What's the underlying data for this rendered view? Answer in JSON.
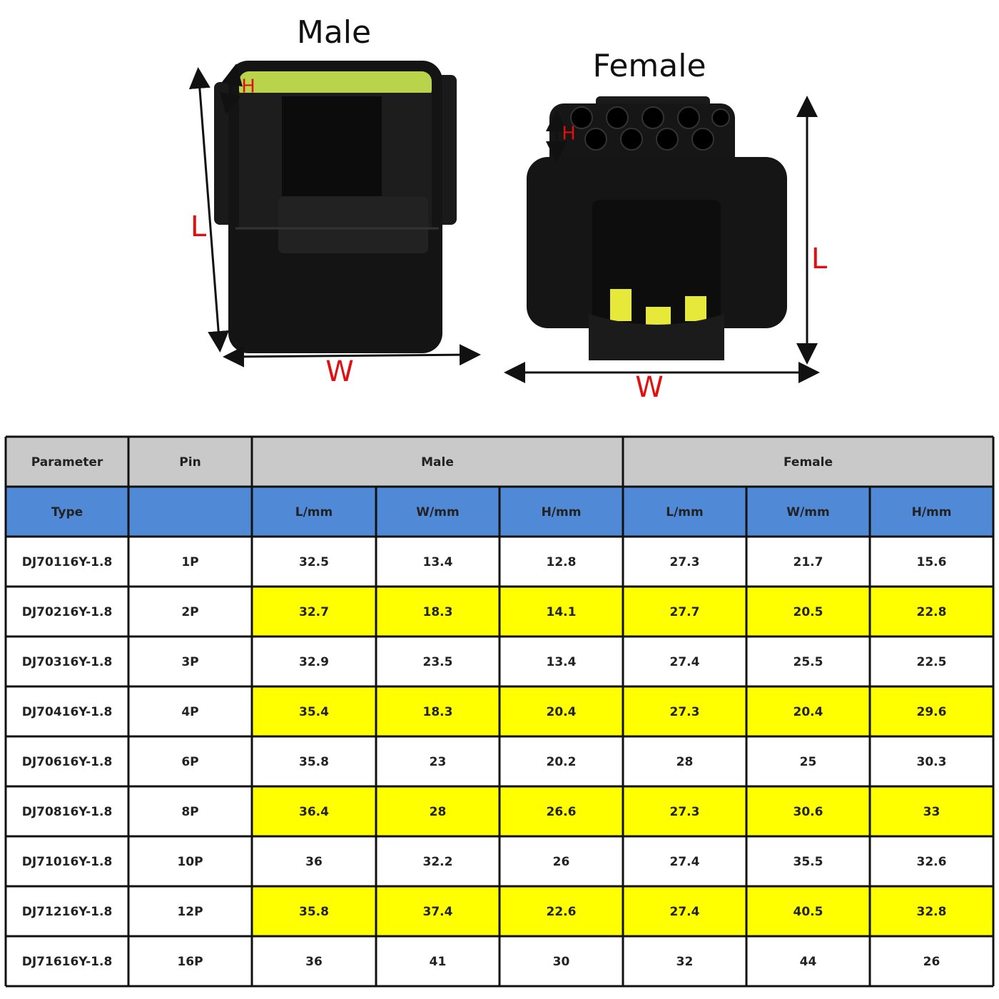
{
  "images": {
    "male": {
      "title": "Male",
      "h": "H",
      "l": "L",
      "w": "W"
    },
    "female": {
      "title": "Female",
      "h": "H",
      "l": "L",
      "w": "W"
    }
  },
  "table": {
    "header": [
      "Parameter",
      "Pin",
      "Male",
      "Female"
    ],
    "subheader": {
      "type": "Type",
      "columns": [
        "L/mm",
        "W/mm",
        "H/mm",
        "L/mm",
        "W/mm",
        "H/mm"
      ]
    },
    "rows": [
      [
        "DJ70116Y-1.8",
        "1P",
        "32.5",
        "13.4",
        "12.8",
        "27.3",
        "21.7",
        "15.6"
      ],
      [
        "DJ70216Y-1.8",
        "2P",
        "32.7",
        "18.3",
        "14.1",
        "27.7",
        "20.5",
        "22.8"
      ],
      [
        "DJ70316Y-1.8",
        "3P",
        "32.9",
        "23.5",
        "13.4",
        "27.4",
        "25.5",
        "22.5"
      ],
      [
        "DJ70416Y-1.8",
        "4P",
        "35.4",
        "18.3",
        "20.4",
        "27.3",
        "20.4",
        "29.6"
      ],
      [
        "DJ70616Y-1.8",
        "6P",
        "35.8",
        "23",
        "20.2",
        "28",
        "25",
        "30.3"
      ],
      [
        "DJ70816Y-1.8",
        "8P",
        "36.4",
        "28",
        "26.6",
        "27.3",
        "30.6",
        "33"
      ],
      [
        "DJ71016Y-1.8",
        "10P",
        "36",
        "32.2",
        "26",
        "27.4",
        "35.5",
        "32.6"
      ],
      [
        "DJ71216Y-1.8",
        "12P",
        "35.8",
        "37.4",
        "22.6",
        "27.4",
        "40.5",
        "32.8"
      ],
      [
        "DJ71616Y-1.8",
        "16P",
        "36",
        "41",
        "30",
        "32",
        "44",
        "26"
      ]
    ]
  }
}
